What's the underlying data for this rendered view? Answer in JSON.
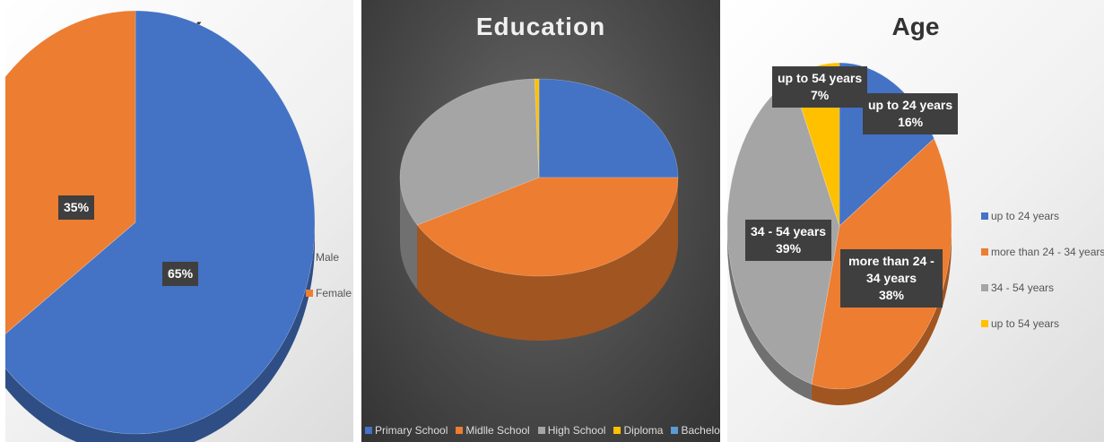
{
  "colors": {
    "blue": "#4472c4",
    "orange": "#ed7d31",
    "gray": "#a5a5a5",
    "yellow": "#ffc000",
    "lightblue": "#5b9bd5",
    "label_bg": "#3f3f3f"
  },
  "chart_data": [
    {
      "type": "pie",
      "title": "Sex",
      "categories": [
        "Male",
        "Female"
      ],
      "values": [
        65,
        35
      ],
      "data_labels": [
        "65%",
        "35%"
      ],
      "legend_position": "right"
    },
    {
      "type": "pie",
      "title": "Education",
      "categories": [
        "Primary School",
        "Midlle School",
        "High School",
        "Diploma",
        "Bachelor"
      ],
      "values": [
        25,
        42,
        32.5,
        0.5,
        0
      ],
      "legend_position": "bottom"
    },
    {
      "type": "pie",
      "title": "Age",
      "categories": [
        "up to 24 years",
        "more than 24 - 34 years",
        "34 - 54 years",
        "up to 54 years"
      ],
      "values": [
        16,
        38,
        39,
        7
      ],
      "data_labels": [
        {
          "name": "up to 24 years",
          "value": "16%"
        },
        {
          "name": "more than 24 - 34 years",
          "value": "38%"
        },
        {
          "name": "34 - 54 years",
          "value": "39%"
        },
        {
          "name": "up to 54 years",
          "value": "7%"
        }
      ],
      "legend_position": "right"
    }
  ]
}
